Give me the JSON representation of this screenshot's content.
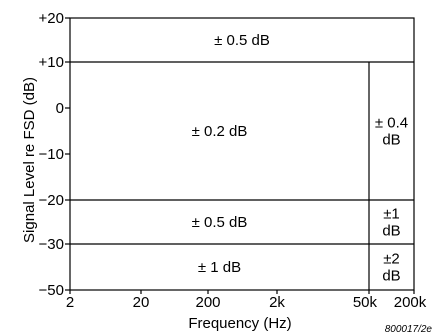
{
  "chart_data": {
    "type": "diagram",
    "xlabel": "Frequency (Hz)",
    "ylabel": "Signal Level re FSD (dB)",
    "figure_code": "800017/2e",
    "x_scale": "log",
    "x_ticks": [
      {
        "value": 2,
        "label": "2"
      },
      {
        "value": 20,
        "label": "20"
      },
      {
        "value": 200,
        "label": "200"
      },
      {
        "value": 2000,
        "label": "2k"
      },
      {
        "value": 50000,
        "label": "50k"
      },
      {
        "value": 200000,
        "label": "200k"
      }
    ],
    "y_ticks": [
      {
        "value": 20,
        "label": "+20"
      },
      {
        "value": 10,
        "label": "+10"
      },
      {
        "value": 0,
        "label": "0"
      },
      {
        "value": -10,
        "label": "−10"
      },
      {
        "value": -20,
        "label": "−20"
      },
      {
        "value": -30,
        "label": "−30"
      },
      {
        "value": -50,
        "label": "−50"
      }
    ],
    "xlim": [
      2,
      200000
    ],
    "ylim": [
      -50,
      20
    ],
    "regions": [
      {
        "id": "top",
        "x": [
          2,
          200000
        ],
        "y": [
          10,
          20
        ],
        "label": [
          "± 0.5 dB"
        ]
      },
      {
        "id": "main",
        "x": [
          2,
          50000
        ],
        "y": [
          -20,
          10
        ],
        "label": [
          "± 0.2 dB"
        ]
      },
      {
        "id": "main-hf",
        "x": [
          50000,
          200000
        ],
        "y": [
          -20,
          10
        ],
        "label": [
          "± 0.4",
          "dB"
        ]
      },
      {
        "id": "mid",
        "x": [
          2,
          50000
        ],
        "y": [
          -30,
          -20
        ],
        "label": [
          "± 0.5 dB"
        ]
      },
      {
        "id": "mid-hf",
        "x": [
          50000,
          200000
        ],
        "y": [
          -30,
          -20
        ],
        "label": [
          "±1",
          "dB"
        ]
      },
      {
        "id": "low",
        "x": [
          2,
          50000
        ],
        "y": [
          -50,
          -30
        ],
        "label": [
          "± 1 dB"
        ]
      },
      {
        "id": "low-hf",
        "x": [
          50000,
          200000
        ],
        "y": [
          -50,
          -30
        ],
        "label": [
          "±2",
          "dB"
        ]
      }
    ]
  }
}
